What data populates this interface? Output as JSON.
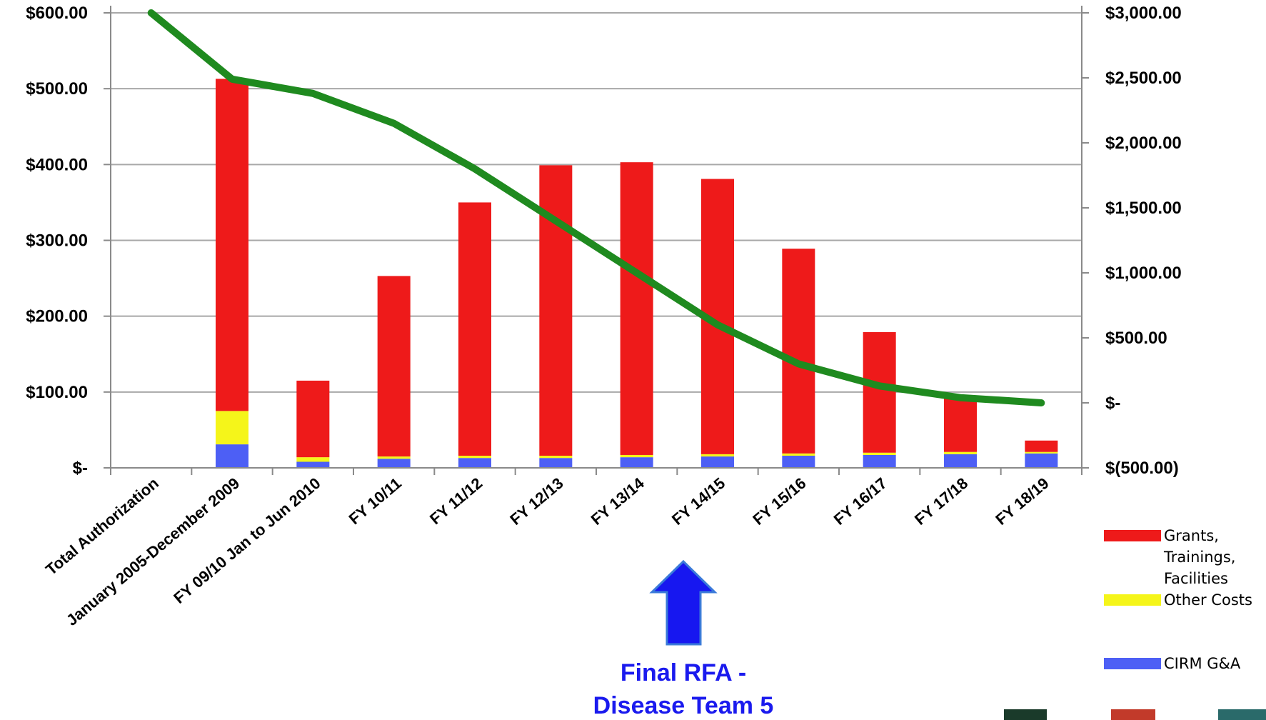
{
  "chart_data": {
    "type": "bar",
    "stacked": true,
    "categories": [
      "Total Authorization",
      "January 2005-December 2009",
      "FY 09/10 Jan to Jun 2010",
      "FY 10/11",
      "FY 11/12",
      "FY 12/13",
      "FY 13/14",
      "FY 14/15",
      "FY 15/16",
      "FY 16/17",
      "FY 17/18",
      "FY 18/19"
    ],
    "series": [
      {
        "name": "CIRM G&A",
        "color": "#4d5ff5",
        "values": [
          0,
          31,
          8,
          12,
          13,
          13,
          14,
          15,
          16,
          17,
          18,
          19
        ]
      },
      {
        "name": "Other Costs",
        "color": "#f5f51a",
        "values": [
          0,
          44,
          6,
          3,
          3,
          3,
          3,
          3,
          3,
          3,
          3,
          2
        ]
      },
      {
        "name": "Grants,\nTrainings,\nFacilities",
        "color": "#ee1a1a",
        "values": [
          0,
          438,
          101,
          238,
          334,
          383,
          386,
          363,
          270,
          159,
          72,
          15
        ]
      }
    ],
    "line_series": {
      "color": "#1f8a1f",
      "axis": "right",
      "values": [
        3000,
        2490,
        2380,
        2150,
        1800,
        1400,
        1000,
        600,
        300,
        130,
        40,
        0
      ]
    },
    "ylim": [
      0,
      600
    ],
    "y_ticks": [
      0,
      100,
      200,
      300,
      400,
      500,
      600
    ],
    "y_tick_labels": [
      "$-",
      "$100.00",
      "$200.00",
      "$300.00",
      "$400.00",
      "$500.00",
      "$600.00"
    ],
    "y2lim": [
      -500,
      3000
    ],
    "y2_ticks": [
      -500,
      0,
      500,
      1000,
      1500,
      2000,
      2500,
      3000
    ],
    "y2_tick_labels": [
      "$(500.00)",
      "$-",
      "$500.00",
      "$1,000.00",
      "$1,500.00",
      "$2,000.00",
      "$2,500.00",
      "$3,000.00"
    ],
    "grid": true,
    "legend_position": "right",
    "annotation": {
      "lines": [
        "Final RFA -",
        "Disease Team 5"
      ],
      "category": "FY 14/15"
    }
  }
}
